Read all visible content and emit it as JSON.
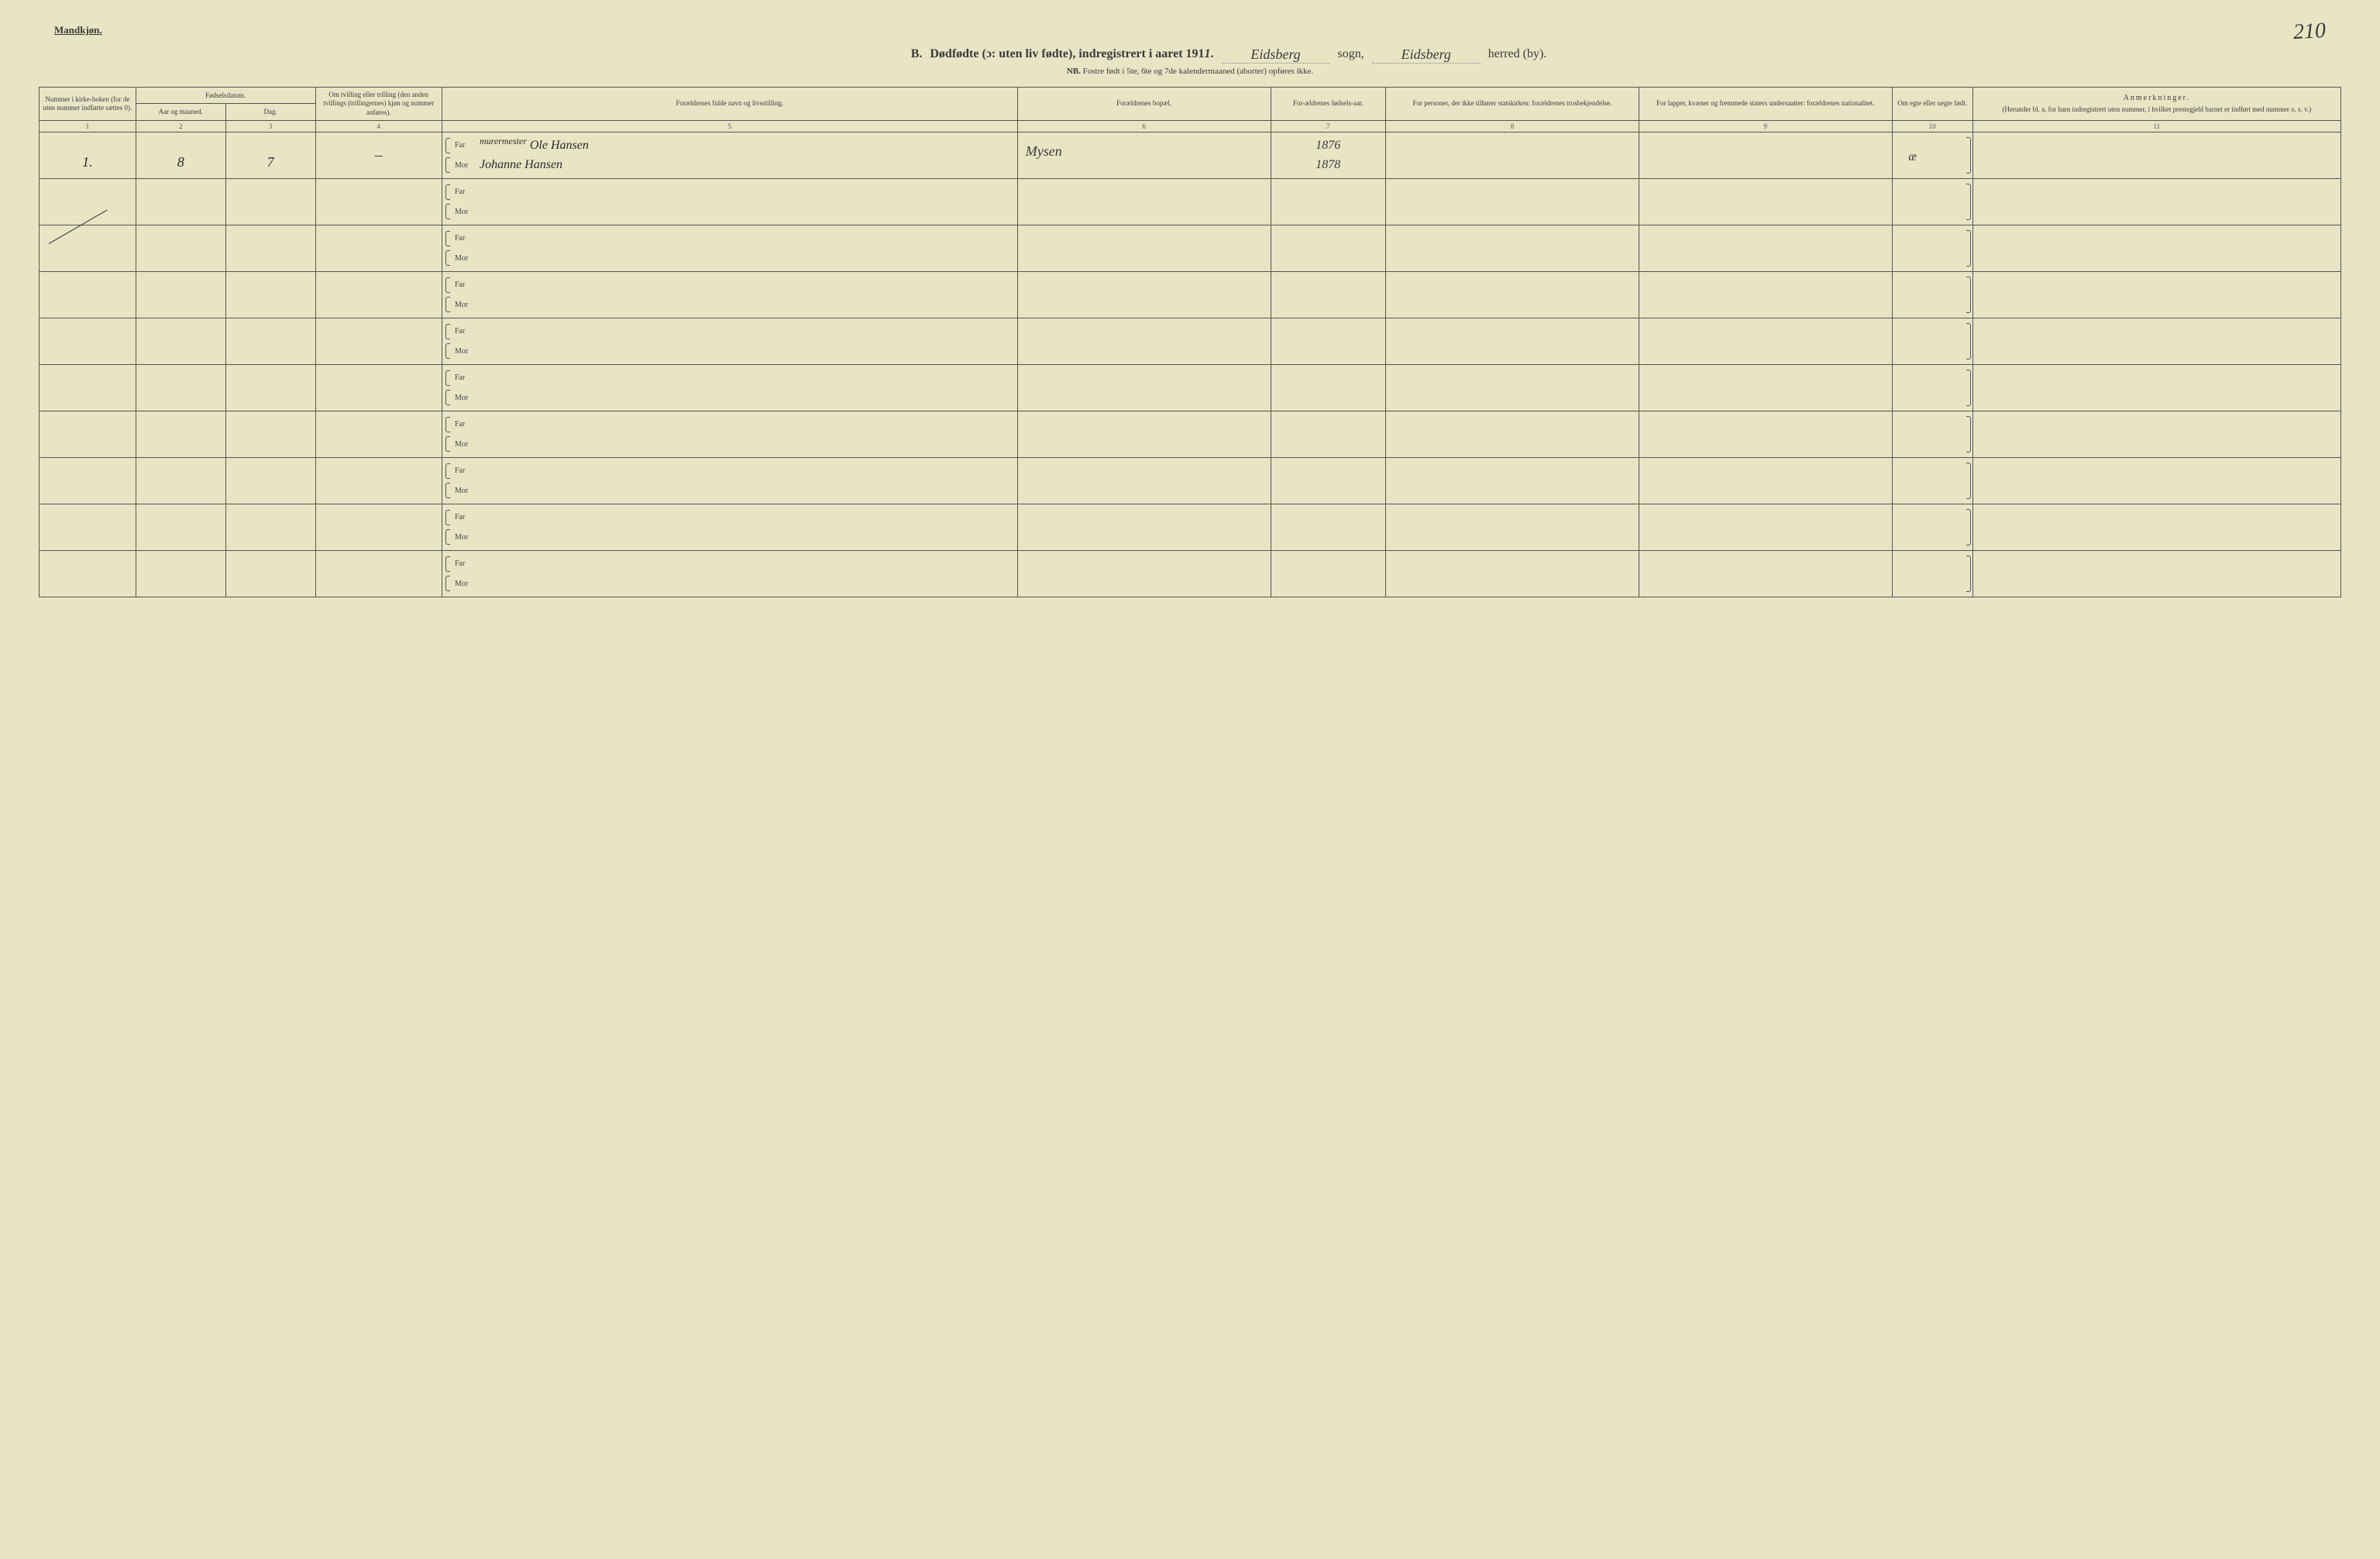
{
  "colors": {
    "background": "#e8e5c5",
    "text": "#3a3a3a",
    "border": "#555555",
    "handwriting": "#2a2a2a"
  },
  "typography": {
    "printed_family": "Georgia/serif",
    "handwritten_family": "cursive/italic",
    "header_fontsize_pt": 9,
    "title_fontsize_pt": 16,
    "hand_fontsize_pt": 17
  },
  "header": {
    "gender": "Mandkjøn.",
    "page_number_hand": "210",
    "title_prefix": "B.",
    "title_main": "Dødfødte (ɔ: uten liv fødte), indregistrert i aaret 191",
    "year_suffix_hand": "1",
    "period": ".",
    "sogn_hand": "Eidsberg",
    "sogn_label": "sogn,",
    "herred_hand": "Eidsberg",
    "herred_label": "herred (by).",
    "subtitle_nb": "NB.",
    "subtitle_rest": "Fostre født i 5te, 6te og 7de kalendermaaned (aborter) opføres ikke."
  },
  "columns": {
    "c1": "Nummer i kirke-boken (for de uten nummer indførte sættes 0).",
    "c2_group": "Fødselsdatum.",
    "c2": "Aar og maaned.",
    "c3": "Dag.",
    "c4": "Om tvilling eller trilling (den anden tvillings (trillingernes) kjøn og nummer anføres).",
    "c5": "Forældrenes fulde navn og livsstilling.",
    "c6": "Forældrenes bopæl.",
    "c7": "For-ældrenes fødsels-aar.",
    "c8": "For personer, der ikke tilhører statskirken: forældrenes trosbekjendelse.",
    "c9": "For lapper, kvæner og fremmede staters undersaatter: forældrenes nationalitet.",
    "c10": "Om egte eller uegte født.",
    "c11_title": "Anmerkninger.",
    "c11_sub": "(Herunder bl. a. for barn indregistrert uten nummer, i hvilket prestegjeld barnet er indført med nummer o. s. v.)",
    "col_numbers": [
      "1",
      "2",
      "3",
      "4",
      "5",
      "6",
      "7",
      "8",
      "9",
      "10",
      "11"
    ]
  },
  "labels": {
    "far": "Far",
    "mor": "Mor"
  },
  "rows": [
    {
      "num": "1.",
      "aar_mnd": "8",
      "dag": "7",
      "tvilling": "–",
      "far_occupation": "murermester",
      "far_name": "Ole Hansen",
      "mor_name": "Johanne Hansen",
      "bopael": "Mysen",
      "far_year": "1876",
      "mor_year": "1878",
      "tros": "",
      "nat": "",
      "egte": "æ",
      "anm": "",
      "slash": false
    },
    {
      "num": "",
      "aar_mnd": "",
      "dag": "",
      "tvilling": "",
      "far_occupation": "",
      "far_name": "",
      "mor_name": "",
      "bopael": "",
      "far_year": "",
      "mor_year": "",
      "tros": "",
      "nat": "",
      "egte": "",
      "anm": "",
      "slash": false
    },
    {
      "num": "",
      "aar_mnd": "",
      "dag": "",
      "tvilling": "",
      "far_occupation": "",
      "far_name": "",
      "mor_name": "",
      "bopael": "",
      "far_year": "",
      "mor_year": "",
      "tros": "",
      "nat": "",
      "egte": "",
      "anm": "",
      "slash": true
    },
    {
      "num": "",
      "aar_mnd": "",
      "dag": "",
      "tvilling": "",
      "far_occupation": "",
      "far_name": "",
      "mor_name": "",
      "bopael": "",
      "far_year": "",
      "mor_year": "",
      "tros": "",
      "nat": "",
      "egte": "",
      "anm": "",
      "slash": false
    },
    {
      "num": "",
      "aar_mnd": "",
      "dag": "",
      "tvilling": "",
      "far_occupation": "",
      "far_name": "",
      "mor_name": "",
      "bopael": "",
      "far_year": "",
      "mor_year": "",
      "tros": "",
      "nat": "",
      "egte": "",
      "anm": "",
      "slash": false
    },
    {
      "num": "",
      "aar_mnd": "",
      "dag": "",
      "tvilling": "",
      "far_occupation": "",
      "far_name": "",
      "mor_name": "",
      "bopael": "",
      "far_year": "",
      "mor_year": "",
      "tros": "",
      "nat": "",
      "egte": "",
      "anm": "",
      "slash": false
    },
    {
      "num": "",
      "aar_mnd": "",
      "dag": "",
      "tvilling": "",
      "far_occupation": "",
      "far_name": "",
      "mor_name": "",
      "bopael": "",
      "far_year": "",
      "mor_year": "",
      "tros": "",
      "nat": "",
      "egte": "",
      "anm": "",
      "slash": false
    },
    {
      "num": "",
      "aar_mnd": "",
      "dag": "",
      "tvilling": "",
      "far_occupation": "",
      "far_name": "",
      "mor_name": "",
      "bopael": "",
      "far_year": "",
      "mor_year": "",
      "tros": "",
      "nat": "",
      "egte": "",
      "anm": "",
      "slash": false
    },
    {
      "num": "",
      "aar_mnd": "",
      "dag": "",
      "tvilling": "",
      "far_occupation": "",
      "far_name": "",
      "mor_name": "",
      "bopael": "",
      "far_year": "",
      "mor_year": "",
      "tros": "",
      "nat": "",
      "egte": "",
      "anm": "",
      "slash": false
    },
    {
      "num": "",
      "aar_mnd": "",
      "dag": "",
      "tvilling": "",
      "far_occupation": "",
      "far_name": "",
      "mor_name": "",
      "bopael": "",
      "far_year": "",
      "mor_year": "",
      "tros": "",
      "nat": "",
      "egte": "",
      "anm": "",
      "slash": false
    }
  ]
}
